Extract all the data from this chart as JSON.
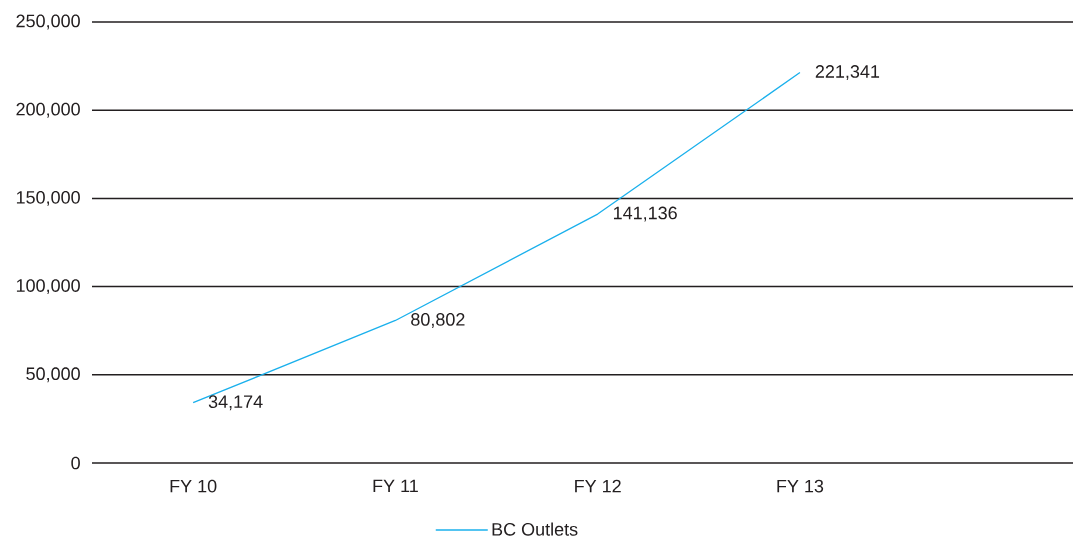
{
  "chart_data": {
    "type": "line",
    "categories": [
      "FY 10",
      "FY 11",
      "FY 12",
      "FY 13"
    ],
    "series": [
      {
        "name": "BC Outlets",
        "color": "#1ab0ec",
        "values": [
          34174,
          80802,
          141136,
          221341
        ],
        "value_labels": [
          "34,174",
          "80,802",
          "141,136",
          "221,341"
        ]
      }
    ],
    "ylim": [
      0,
      250000
    ],
    "yticks": [
      0,
      {
        "value": 50000,
        "label": "50,000"
      },
      {
        "value": 100000,
        "label": "100,000"
      },
      {
        "value": 150000,
        "label": "150,000"
      },
      {
        "value": 200000,
        "label": "200,000"
      },
      {
        "value": 250000,
        "label": "250,000"
      }
    ],
    "grid": "y",
    "legend": "bottom",
    "marker": "none",
    "line_style": "solid"
  }
}
